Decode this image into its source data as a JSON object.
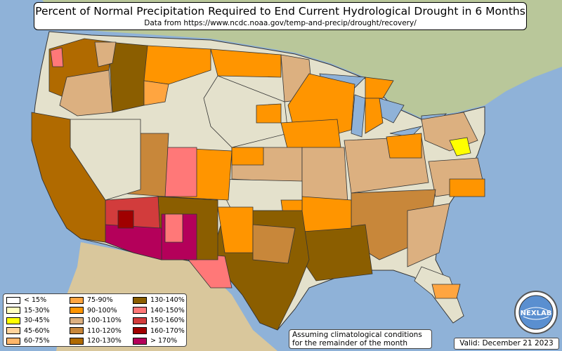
{
  "title": "Percent of Normal Precipitation Required to End Current Hydrological Drought in 6 Months",
  "subtitle": "Data from https://www.ncdc.noaa.gov/temp-and-precip/drought/recovery/",
  "note_line1": "Assuming climatological conditions",
  "note_line2": "for the remainder of the month",
  "valid": "Valid: December 21 2023",
  "logo_text": "NEXLAB",
  "legend": [
    {
      "label": "< 15%",
      "color": "#ffffff"
    },
    {
      "label": "15-30%",
      "color": "#ffffc0"
    },
    {
      "label": "30-45%",
      "color": "#ffff00"
    },
    {
      "label": "45-60%",
      "color": "#ffd39b"
    },
    {
      "label": "60-75%",
      "color": "#ffb66a"
    },
    {
      "label": "75-90%",
      "color": "#ffa540"
    },
    {
      "label": "90-100%",
      "color": "#ff9500"
    },
    {
      "label": "100-110%",
      "color": "#dcb080"
    },
    {
      "label": "110-120%",
      "color": "#c8873a"
    },
    {
      "label": "120-130%",
      "color": "#b06a00"
    },
    {
      "label": "130-140%",
      "color": "#8b5e00"
    },
    {
      "label": "140-150%",
      "color": "#ff7878"
    },
    {
      "label": "150-160%",
      "color": "#d23c3c"
    },
    {
      "label": "160-170%",
      "color": "#a00000"
    },
    {
      "label": "> 170%",
      "color": "#b4005a"
    }
  ]
}
